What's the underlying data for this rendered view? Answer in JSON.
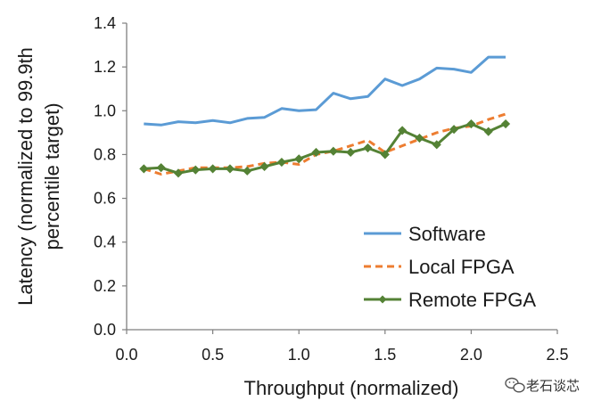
{
  "chart_data": {
    "type": "line",
    "xlabel": "Throughput (normalized)",
    "ylabel": "Latency (normalized to 99.9th percentile target)",
    "xlim": [
      0,
      2.5
    ],
    "ylim": [
      0,
      1.4
    ],
    "xticks": [
      "0.0",
      "0.5",
      "1.0",
      "1.5",
      "2.0",
      "2.5"
    ],
    "yticks": [
      "0.0",
      "0.2",
      "0.4",
      "0.6",
      "0.8",
      "1.0",
      "1.2",
      "1.4"
    ],
    "grid": false,
    "legend_position": "bottom-right",
    "series": [
      {
        "name": "Software",
        "color": "#5b9bd5",
        "style": "solid",
        "marker": "none",
        "x": [
          0.1,
          0.2,
          0.3,
          0.4,
          0.5,
          0.6,
          0.7,
          0.8,
          0.9,
          1.0,
          1.1,
          1.2,
          1.3,
          1.4,
          1.5,
          1.6,
          1.7,
          1.8,
          1.9,
          2.0,
          2.1,
          2.2
        ],
        "y": [
          0.94,
          0.935,
          0.95,
          0.945,
          0.955,
          0.945,
          0.965,
          0.97,
          1.01,
          1.0,
          1.005,
          1.08,
          1.055,
          1.065,
          1.145,
          1.115,
          1.145,
          1.195,
          1.19,
          1.175,
          1.245,
          1.245
        ]
      },
      {
        "name": "Local FPGA",
        "color": "#ed7d31",
        "style": "dashed",
        "marker": "none",
        "x": [
          0.1,
          0.2,
          0.3,
          0.4,
          0.5,
          0.6,
          0.7,
          0.8,
          0.9,
          1.0,
          1.1,
          1.2,
          1.3,
          1.4,
          1.5,
          1.6,
          1.7,
          1.8,
          1.9,
          2.0,
          2.1,
          2.2
        ],
        "y": [
          0.735,
          0.71,
          0.725,
          0.74,
          0.74,
          0.74,
          0.745,
          0.76,
          0.765,
          0.755,
          0.8,
          0.815,
          0.84,
          0.865,
          0.81,
          0.84,
          0.87,
          0.9,
          0.92,
          0.93,
          0.96,
          0.985
        ]
      },
      {
        "name": "Remote FPGA",
        "color": "#548235",
        "style": "solid",
        "marker": "diamond",
        "x": [
          0.1,
          0.2,
          0.3,
          0.4,
          0.5,
          0.6,
          0.7,
          0.8,
          0.9,
          1.0,
          1.1,
          1.2,
          1.3,
          1.4,
          1.5,
          1.6,
          1.7,
          1.8,
          1.9,
          2.0,
          2.1,
          2.2
        ],
        "y": [
          0.735,
          0.74,
          0.715,
          0.73,
          0.735,
          0.735,
          0.725,
          0.745,
          0.765,
          0.78,
          0.81,
          0.815,
          0.81,
          0.83,
          0.8,
          0.91,
          0.875,
          0.845,
          0.915,
          0.94,
          0.905,
          0.94
        ]
      }
    ]
  },
  "watermark": {
    "text": "老石谈芯",
    "icon": "wechat-chat-bubbles-icon"
  }
}
